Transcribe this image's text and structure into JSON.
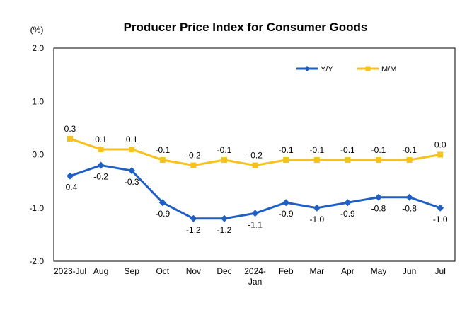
{
  "chart_data": {
    "type": "line",
    "title": "Producer Price Index for Consumer Goods",
    "ylabel": "(%)",
    "xlabel": "",
    "ylim": [
      -2.0,
      2.0
    ],
    "yticks": [
      "2.0",
      "1.0",
      "0.0",
      "-1.0",
      "-2.0"
    ],
    "ytick_values": [
      2.0,
      1.0,
      0.0,
      -1.0,
      -2.0
    ],
    "categories": [
      [
        "2023-Jul"
      ],
      [
        "Aug"
      ],
      [
        "Sep"
      ],
      [
        "Oct"
      ],
      [
        "Nov"
      ],
      [
        "Dec"
      ],
      [
        "2024-",
        "Jan"
      ],
      [
        "Feb"
      ],
      [
        "Mar"
      ],
      [
        "Apr"
      ],
      [
        "May"
      ],
      [
        "Jun"
      ],
      [
        "Jul"
      ]
    ],
    "legend_position": "top-right",
    "grid": false,
    "series": [
      {
        "name": "Y/Y",
        "color": "#1f5fc4",
        "marker": "diamond",
        "values": [
          -0.4,
          -0.2,
          -0.3,
          -0.9,
          -1.2,
          -1.2,
          -1.1,
          -0.9,
          -1.0,
          -0.9,
          -0.8,
          -0.8,
          -1.0
        ],
        "labels": [
          "-0.4",
          "-0.2",
          "-0.3",
          "-0.9",
          "-1.2",
          "-1.2",
          "-1.1",
          "-0.9",
          "-1.0",
          "-0.9",
          "-0.8",
          "-0.8",
          "-1.0"
        ]
      },
      {
        "name": "M/M",
        "color": "#f7c21b",
        "marker": "square",
        "values": [
          0.3,
          0.1,
          0.1,
          -0.1,
          -0.2,
          -0.1,
          -0.2,
          -0.1,
          -0.1,
          -0.1,
          -0.1,
          -0.1,
          0.0
        ],
        "labels": [
          "0.3",
          "0.1",
          "0.1",
          "-0.1",
          "-0.2",
          "-0.1",
          "-0.2",
          "-0.1",
          "-0.1",
          "-0.1",
          "-0.1",
          "-0.1",
          "0.0"
        ]
      }
    ]
  }
}
